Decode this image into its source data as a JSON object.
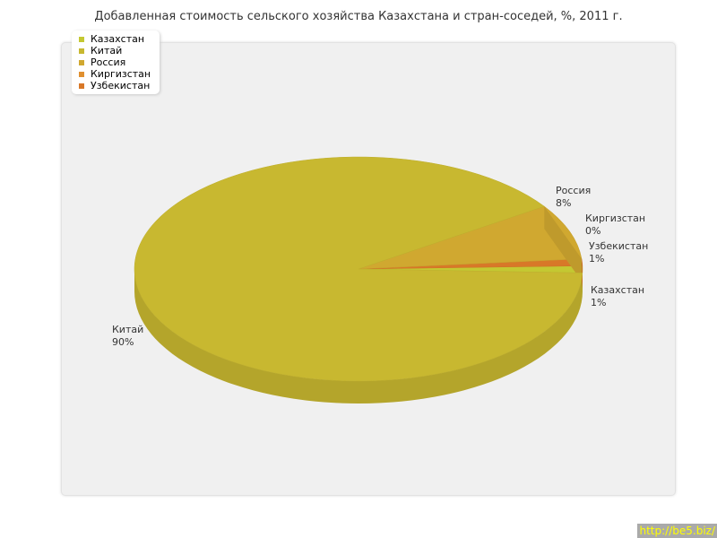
{
  "chart_data": {
    "type": "pie",
    "title": "Добавленная стоимость сельского хозяйства Казахстана и стран-соседей, %, 2011 г.",
    "legend_position": "top-left",
    "slices": [
      {
        "name": "Казахстан",
        "value": 1,
        "label": "1%",
        "color": "#c4c832"
      },
      {
        "name": "Китай",
        "value": 90,
        "label": "90%",
        "color": "#c8b830"
      },
      {
        "name": "Россия",
        "value": 8,
        "label": "8%",
        "color": "#d0a830"
      },
      {
        "name": "Киргизстан",
        "value": 0,
        "label": "0%",
        "color": "#e09030"
      },
      {
        "name": "Узбекистан",
        "value": 1,
        "label": "1%",
        "color": "#d87828"
      }
    ]
  },
  "footer": {
    "link": "http://be5.biz/"
  }
}
